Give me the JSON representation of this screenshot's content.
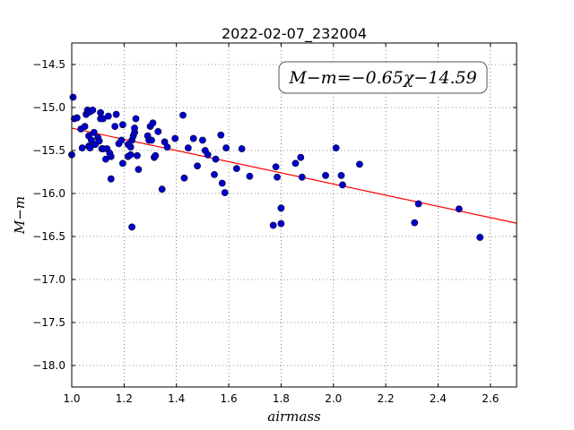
{
  "chart_data": {
    "type": "scatter",
    "title": "2022-02-07_232004",
    "xlabel": "airmass",
    "ylabel": "M−m",
    "xlim": [
      1.0,
      2.7
    ],
    "ylim": [
      -18.25,
      -14.25
    ],
    "y_inverted": true,
    "grid": true,
    "x_ticks": [
      "1.0",
      "1.2",
      "1.4",
      "1.6",
      "1.8",
      "2.0",
      "2.2",
      "2.4",
      "2.6"
    ],
    "y_ticks": [
      "−14.5",
      "−15.0",
      "−15.5",
      "−16.0",
      "−16.5",
      "−17.0",
      "−17.5",
      "−18.0"
    ],
    "annotation": "M−m=−0.65χ−14.59",
    "fit_line": {
      "slope": -0.65,
      "intercept": -14.59,
      "color": "#ff0000"
    },
    "point_color": "#0000cc",
    "points": [
      [
        1.0,
        -15.55
      ],
      [
        1.005,
        -14.88
      ],
      [
        1.01,
        -15.13
      ],
      [
        1.02,
        -15.12
      ],
      [
        1.035,
        -15.25
      ],
      [
        1.04,
        -15.47
      ],
      [
        1.05,
        -15.22
      ],
      [
        1.055,
        -15.08
      ],
      [
        1.06,
        -15.03
      ],
      [
        1.065,
        -15.45
      ],
      [
        1.065,
        -15.33
      ],
      [
        1.07,
        -15.47
      ],
      [
        1.07,
        -15.05
      ],
      [
        1.075,
        -15.38
      ],
      [
        1.08,
        -15.03
      ],
      [
        1.085,
        -15.29
      ],
      [
        1.09,
        -15.43
      ],
      [
        1.1,
        -15.35
      ],
      [
        1.105,
        -15.39
      ],
      [
        1.11,
        -15.13
      ],
      [
        1.11,
        -15.06
      ],
      [
        1.115,
        -15.48
      ],
      [
        1.12,
        -15.13
      ],
      [
        1.12,
        -15.48
      ],
      [
        1.13,
        -15.6
      ],
      [
        1.135,
        -15.48
      ],
      [
        1.14,
        -15.1
      ],
      [
        1.145,
        -15.53
      ],
      [
        1.15,
        -15.83
      ],
      [
        1.15,
        -15.57
      ],
      [
        1.165,
        -15.22
      ],
      [
        1.17,
        -15.08
      ],
      [
        1.18,
        -15.42
      ],
      [
        1.19,
        -15.38
      ],
      [
        1.195,
        -15.2
      ],
      [
        1.195,
        -15.65
      ],
      [
        1.215,
        -15.43
      ],
      [
        1.215,
        -15.57
      ],
      [
        1.225,
        -15.46
      ],
      [
        1.225,
        -15.55
      ],
      [
        1.23,
        -15.38
      ],
      [
        1.23,
        -16.39
      ],
      [
        1.235,
        -15.33
      ],
      [
        1.24,
        -15.29
      ],
      [
        1.24,
        -15.24
      ],
      [
        1.245,
        -15.13
      ],
      [
        1.25,
        -15.56
      ],
      [
        1.255,
        -15.72
      ],
      [
        1.29,
        -15.33
      ],
      [
        1.295,
        -15.38
      ],
      [
        1.3,
        -15.22
      ],
      [
        1.305,
        -15.38
      ],
      [
        1.31,
        -15.18
      ],
      [
        1.315,
        -15.58
      ],
      [
        1.32,
        -15.56
      ],
      [
        1.33,
        -15.28
      ],
      [
        1.345,
        -15.95
      ],
      [
        1.355,
        -15.4
      ],
      [
        1.365,
        -15.46
      ],
      [
        1.395,
        -15.36
      ],
      [
        1.425,
        -15.09
      ],
      [
        1.43,
        -15.82
      ],
      [
        1.445,
        -15.47
      ],
      [
        1.465,
        -15.36
      ],
      [
        1.48,
        -15.68
      ],
      [
        1.5,
        -15.38
      ],
      [
        1.51,
        -15.5
      ],
      [
        1.52,
        -15.55
      ],
      [
        1.545,
        -15.78
      ],
      [
        1.55,
        -15.6
      ],
      [
        1.57,
        -15.32
      ],
      [
        1.575,
        -15.88
      ],
      [
        1.585,
        -15.99
      ],
      [
        1.59,
        -15.47
      ],
      [
        1.63,
        -15.71
      ],
      [
        1.65,
        -15.48
      ],
      [
        1.68,
        -15.8
      ],
      [
        1.77,
        -16.37
      ],
      [
        1.78,
        -15.69
      ],
      [
        1.785,
        -15.81
      ],
      [
        1.8,
        -16.17
      ],
      [
        1.8,
        -16.35
      ],
      [
        1.855,
        -15.65
      ],
      [
        1.875,
        -15.58
      ],
      [
        1.88,
        -15.81
      ],
      [
        1.97,
        -15.79
      ],
      [
        2.01,
        -15.47
      ],
      [
        2.03,
        -15.79
      ],
      [
        2.035,
        -15.9
      ],
      [
        2.1,
        -15.66
      ],
      [
        2.31,
        -16.34
      ],
      [
        2.325,
        -16.12
      ],
      [
        2.48,
        -16.18
      ],
      [
        2.56,
        -16.51
      ]
    ]
  }
}
